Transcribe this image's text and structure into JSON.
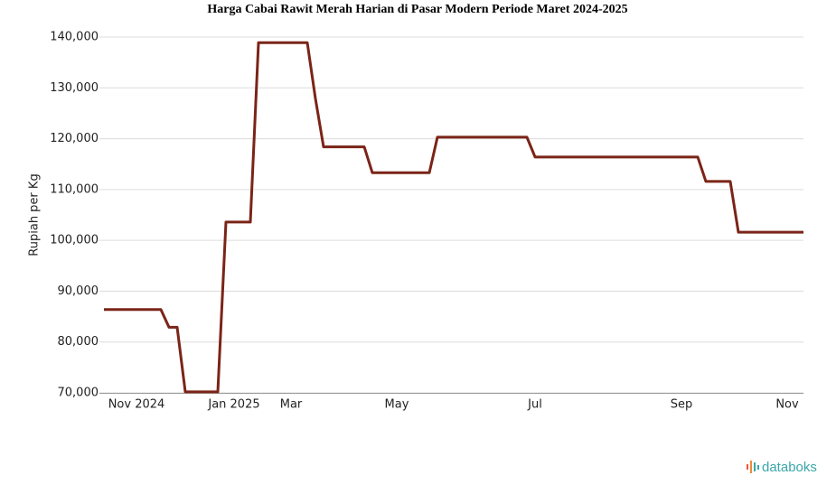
{
  "chart_data": {
    "type": "line",
    "title": "Harga Cabai Rawit Merah Harian di Pasar Modern Periode Maret 2024-2025",
    "y_label": "Rupiah per Kg",
    "watermark": "databoks",
    "color": "#7b2418",
    "grid": true,
    "categories": [
      null,
      null,
      null,
      null,
      "Nov 2024",
      null,
      null,
      null,
      null,
      null,
      null,
      null,
      null,
      null,
      null,
      null,
      "Jan 2025",
      null,
      null,
      null,
      null,
      null,
      null,
      "Mar",
      null,
      null,
      null,
      null,
      null,
      null,
      null,
      null,
      null,
      null,
      null,
      null,
      "May",
      null,
      null,
      null,
      null,
      null,
      null,
      null,
      null,
      null,
      null,
      null,
      null,
      null,
      null,
      null,
      null,
      "Jul",
      null,
      null,
      null,
      null,
      null,
      null,
      null,
      null,
      null,
      null,
      null,
      null,
      null,
      null,
      null,
      null,
      null,
      "Sep",
      null,
      null,
      null,
      null,
      null,
      null,
      null,
      null,
      null,
      null,
      null,
      null,
      "Nov",
      null,
      null
    ],
    "values": [
      86400,
      86400,
      86400,
      86400,
      86400,
      86400,
      86400,
      86400,
      82900,
      82900,
      70200,
      70200,
      70200,
      70200,
      70200,
      103600,
      103600,
      103600,
      103600,
      138900,
      138900,
      138900,
      138900,
      138900,
      138900,
      138900,
      127900,
      118400,
      118400,
      118400,
      118400,
      118400,
      118400,
      113300,
      113300,
      113300,
      113300,
      113300,
      113300,
      113300,
      113300,
      120300,
      120300,
      120300,
      120300,
      120300,
      120300,
      120300,
      120300,
      120300,
      120300,
      120300,
      120300,
      116400,
      116400,
      116400,
      116400,
      116400,
      116400,
      116400,
      116400,
      116400,
      116400,
      116400,
      116400,
      116400,
      116400,
      116400,
      116400,
      116400,
      116400,
      116400,
      116400,
      116400,
      111600,
      111600,
      111600,
      111600,
      101600,
      101600,
      101600,
      101600,
      101600,
      101600,
      101600,
      101600,
      101600
    ],
    "ylim": [
      70000,
      140000
    ],
    "yticks": [
      {
        "value": 70000,
        "label": "70,000"
      },
      {
        "value": 80000,
        "label": "80,000"
      },
      {
        "value": 90000,
        "label": "90,000"
      },
      {
        "value": 100000,
        "label": "100,000"
      },
      {
        "value": 110000,
        "label": "110,000"
      },
      {
        "value": 120000,
        "label": "120,000"
      },
      {
        "value": 130000,
        "label": "130,000"
      },
      {
        "value": 140000,
        "label": "140,000"
      }
    ]
  }
}
